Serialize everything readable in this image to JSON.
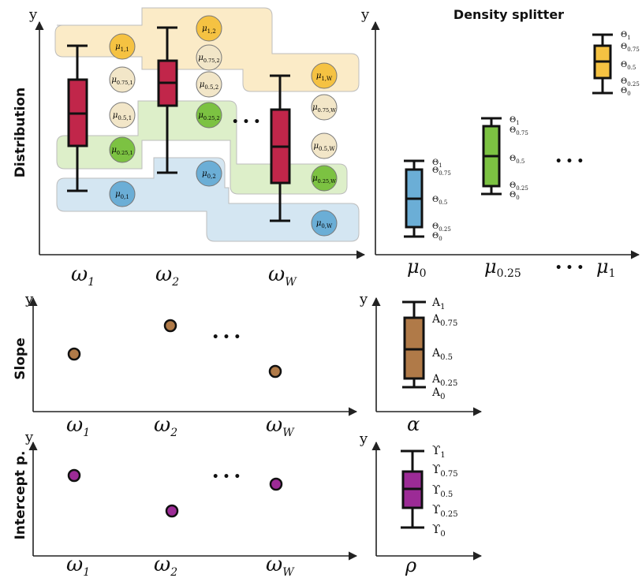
{
  "rows": {
    "distribution": "Distribution",
    "slope": "Slope",
    "intercept": "Intercept p."
  },
  "title_right": "Density splitter",
  "y_axis_letter": "y",
  "x_labels": {
    "omega_base": "ω",
    "omega_subs": [
      "1",
      "2",
      "W"
    ]
  },
  "ellipsis": "• • •",
  "mu_base": "μ",
  "dist_circles": {
    "band_1": [
      {
        "sub": "1,1",
        "color": "#F5C242"
      },
      {
        "sub": "1,2",
        "color": "#F5C242"
      },
      {
        "sub": "1,W",
        "color": "#F5C242"
      }
    ],
    "band_0_75": [
      {
        "sub": "0.75,1",
        "color": "#F2E6C8"
      },
      {
        "sub": "0.75,2",
        "color": "#F2E6C8"
      },
      {
        "sub": "0.75,W",
        "color": "#F2E6C8"
      }
    ],
    "band_0_5": [
      {
        "sub": "0.5,1",
        "color": "#F2E6C8"
      },
      {
        "sub": "0.5,2",
        "color": "#F2E6C8"
      },
      {
        "sub": "0.5,W",
        "color": "#F2E6C8"
      }
    ],
    "band_0_25": [
      {
        "sub": "0.25,1",
        "color": "#7CC242"
      },
      {
        "sub": "0.25,2",
        "color": "#7CC242"
      },
      {
        "sub": "0.25,W",
        "color": "#7CC242"
      }
    ],
    "band_0": [
      {
        "sub": "0,1",
        "color": "#6BAED6"
      },
      {
        "sub": "0,2",
        "color": "#6BAED6"
      },
      {
        "sub": "0,W",
        "color": "#6BAED6"
      }
    ]
  },
  "band_colors": {
    "orange": "#FBEBC7",
    "green": "#DDEFC9",
    "blue": "#D4E6F2"
  },
  "box_colors": {
    "distribution": "#C1264A",
    "mu0": "#6BAED6",
    "mu025": "#7CC242",
    "mu1": "#F5C242",
    "alpha": "#B07A48",
    "rho": "#9C2B96"
  },
  "density_x_labels": [
    {
      "base": "μ",
      "sub": "0"
    },
    {
      "base": "μ",
      "sub": "0.25"
    },
    {
      "base": "μ",
      "sub": "1"
    }
  ],
  "theta_labels": [
    {
      "base": "Θ",
      "sub": "1"
    },
    {
      "base": "Θ",
      "sub": "0.75"
    },
    {
      "base": "Θ",
      "sub": "0.5"
    },
    {
      "base": "Θ",
      "sub": "0.25"
    },
    {
      "base": "Θ",
      "sub": "0"
    }
  ],
  "alpha_labels": [
    {
      "base": "A",
      "sub": "1"
    },
    {
      "base": "A",
      "sub": "0.75"
    },
    {
      "base": "A",
      "sub": "0.5"
    },
    {
      "base": "A",
      "sub": "0.25"
    },
    {
      "base": "A",
      "sub": "0"
    }
  ],
  "upsilon_labels": [
    {
      "base": "ϒ",
      "sub": "1"
    },
    {
      "base": "ϒ",
      "sub": "0.75"
    },
    {
      "base": "ϒ",
      "sub": "0.5"
    },
    {
      "base": "ϒ",
      "sub": "0.25"
    },
    {
      "base": "ϒ",
      "sub": "0"
    }
  ],
  "alpha_symbol": "α",
  "rho_symbol": "ρ",
  "point_colors": {
    "slope": "#B07A48",
    "intercept": "#9C2B96"
  }
}
